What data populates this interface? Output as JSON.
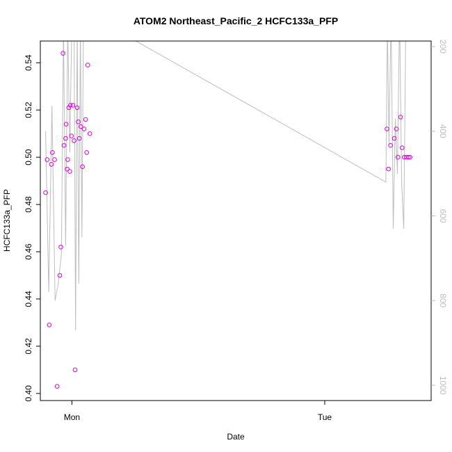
{
  "chart_data": {
    "type": "scatter",
    "title": "ATOM2 Northeast_Pacific_2 HCFC133a_PFP",
    "xlabel": "Date",
    "ylabel": "HCFC133a_PFP",
    "x_ticks": [
      {
        "label": "Mon",
        "value": 0
      },
      {
        "label": "Tue",
        "value": 24
      }
    ],
    "xlim": [
      -3.0,
      34.1
    ],
    "ylim": [
      0.397,
      0.5492
    ],
    "y_ticks": [
      0.4,
      0.42,
      0.44,
      0.46,
      0.48,
      0.5,
      0.52,
      0.54
    ],
    "y2_ticks": [
      200,
      400,
      600,
      800,
      1000
    ],
    "y2lim": [
      1036,
      187
    ],
    "colors": {
      "points": "#dd00dd",
      "line": "#bdbdbd",
      "axis": "#000000",
      "right_axis": "#bdbdbd"
    },
    "series": [
      {
        "kind": "points",
        "axis": "left",
        "x": [
          -2.5,
          -2.35,
          -2.15,
          -1.95,
          -1.85,
          -1.65,
          -1.4,
          -1.15,
          -1.05,
          -0.85,
          -0.75,
          -0.6,
          -0.55,
          -0.45,
          -0.4,
          -0.3,
          -0.2,
          -0.15,
          -0.05,
          0.1,
          0.2,
          0.3,
          0.5,
          0.6,
          0.7,
          0.85,
          1.0,
          1.15,
          1.3,
          1.4,
          1.5,
          1.7,
          29.9,
          30.05,
          30.25,
          30.6,
          30.8,
          30.95,
          31.2,
          31.35,
          31.55,
          31.75,
          31.95,
          32.1
        ],
        "y": [
          0.485,
          0.499,
          0.429,
          0.497,
          0.502,
          0.499,
          0.403,
          0.45,
          0.462,
          0.544,
          0.505,
          0.508,
          0.514,
          0.495,
          0.499,
          0.521,
          0.494,
          0.522,
          0.509,
          0.522,
          0.507,
          0.41,
          0.521,
          0.515,
          0.508,
          0.513,
          0.496,
          0.512,
          0.516,
          0.502,
          0.539,
          0.51,
          0.512,
          0.495,
          0.505,
          0.508,
          0.512,
          0.5,
          0.517,
          0.504,
          0.5,
          0.5,
          0.5,
          0.5
        ]
      },
      {
        "kind": "line",
        "axis": "right",
        "x": [
          -2.5,
          -2.2,
          -1.9,
          -1.6,
          -1.3,
          -1.0,
          -0.8,
          -0.6,
          -0.4,
          -0.2,
          0.0,
          0.2,
          0.35,
          0.5,
          0.65,
          0.8,
          0.95,
          1.1,
          1.3,
          29.8,
          29.95,
          30.1,
          30.3,
          30.5,
          30.7,
          30.9,
          31.1,
          31.3,
          31.5,
          31.7
        ],
        "y": [
          400,
          780,
          340,
          800,
          760,
          690,
          150,
          670,
          150,
          450,
          130,
          150,
          870,
          150,
          760,
          150,
          650,
          120,
          120,
          520,
          150,
          430,
          120,
          630,
          370,
          500,
          120,
          520,
          630,
          150
        ]
      }
    ]
  }
}
